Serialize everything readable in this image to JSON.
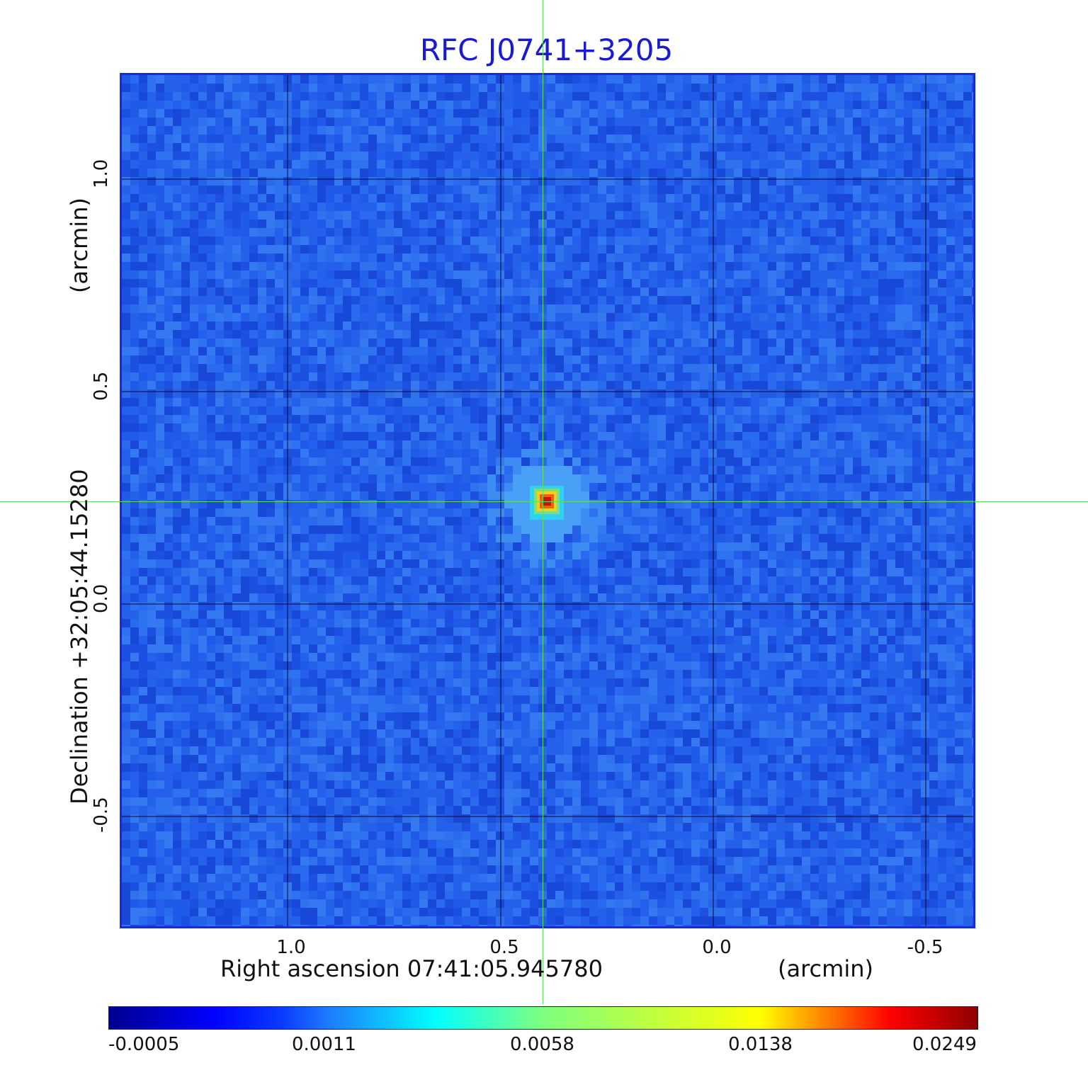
{
  "title": "RFC J0741+3205",
  "x_axis": {
    "label": "Right ascension  07:41:05.945780",
    "unit": "(arcmin)",
    "ticks": [
      "1.0",
      "0.5",
      "0.0",
      "-0.5"
    ]
  },
  "y_axis": {
    "label": "Declination  +32:05:44.15280",
    "unit": "(arcmin)",
    "ticks": [
      "1.0",
      "0.5",
      "0.0",
      "-0.5"
    ]
  },
  "colorbar": {
    "ticks": [
      "-0.0005",
      "0.0011",
      "0.0058",
      "0.0138",
      "0.0249"
    ],
    "colormap": "jet"
  },
  "colors": {
    "title": "#1a1ad0",
    "crosshair": "#5ee05e",
    "background_map": "#2a66ee",
    "peak": "#d01010"
  }
}
